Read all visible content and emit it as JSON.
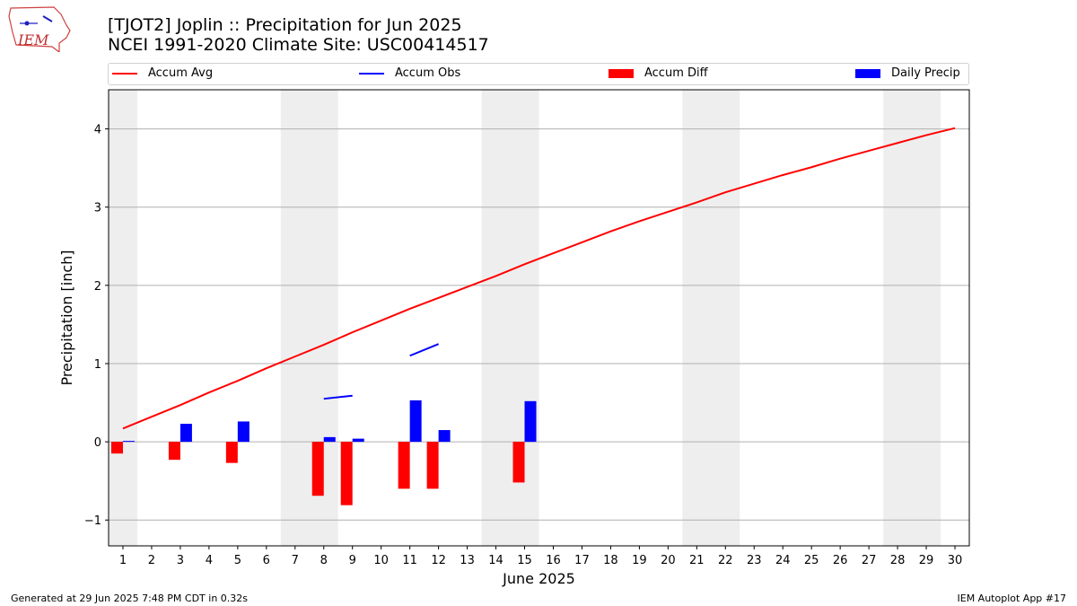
{
  "header": {
    "logo_text": "IEM",
    "title_line1": "[TJOT2] Joplin :: Precipitation for Jun 2025",
    "title_line2": "NCEI 1991-2020 Climate Site: USC00414517"
  },
  "footer": {
    "left": "Generated at 29 Jun 2025 7:48 PM CDT in 0.32s",
    "right": "IEM Autoplot App #17"
  },
  "colors": {
    "avg": "#ff0000",
    "obs": "#0000ff",
    "diff": "#ff0000",
    "daily": "#0000ff",
    "weekend": "#eeeeee",
    "grid": "#b0b0b0"
  },
  "chart_data": {
    "type": "bar",
    "xlabel": "June 2025",
    "ylabel": "Precipitation [inch]",
    "xlim": [
      0.5,
      30.5
    ],
    "ylim": [
      -1.33,
      4.5
    ],
    "days": [
      1,
      2,
      3,
      4,
      5,
      6,
      7,
      8,
      9,
      10,
      11,
      12,
      13,
      14,
      15,
      16,
      17,
      18,
      19,
      20,
      21,
      22,
      23,
      24,
      25,
      26,
      27,
      28,
      29,
      30
    ],
    "yticks": [
      -1,
      0,
      1,
      2,
      3,
      4
    ],
    "ytick_labels": [
      "−1",
      "0",
      "1",
      "2",
      "3",
      "4"
    ],
    "grid": "horizontal",
    "legend_position": "top",
    "weekend_ranges": [
      [
        0.5,
        1.5
      ],
      [
        6.5,
        8.5
      ],
      [
        13.5,
        15.5
      ],
      [
        20.5,
        22.5
      ],
      [
        27.5,
        29.5
      ]
    ],
    "legend": [
      {
        "name": "Accum Avg",
        "kind": "line",
        "color": "#ff0000"
      },
      {
        "name": "Accum Obs",
        "kind": "line",
        "color": "#0000ff"
      },
      {
        "name": "Accum Diff",
        "kind": "bar",
        "color": "#ff0000"
      },
      {
        "name": "Daily Precip",
        "kind": "bar",
        "color": "#0000ff"
      }
    ],
    "series": [
      {
        "name": "Accum Avg",
        "type": "line",
        "x": [
          1,
          2,
          3,
          4,
          5,
          6,
          7,
          8,
          9,
          10,
          11,
          12,
          13,
          14,
          15,
          16,
          17,
          18,
          19,
          20,
          21,
          22,
          23,
          24,
          25,
          26,
          27,
          28,
          29,
          30
        ],
        "values": [
          0.17,
          0.32,
          0.47,
          0.63,
          0.78,
          0.94,
          1.09,
          1.24,
          1.4,
          1.55,
          1.7,
          1.84,
          1.98,
          2.12,
          2.27,
          2.41,
          2.55,
          2.69,
          2.82,
          2.94,
          3.06,
          3.19,
          3.3,
          3.41,
          3.51,
          3.62,
          3.72,
          3.82,
          3.92,
          4.01
        ]
      },
      {
        "name": "Accum Obs",
        "type": "line",
        "segments": [
          {
            "x": [
              8,
              9
            ],
            "values": [
              0.55,
              0.59
            ]
          },
          {
            "x": [
              11,
              12
            ],
            "values": [
              1.1,
              1.25
            ]
          }
        ]
      },
      {
        "name": "Accum Diff",
        "type": "bar",
        "x": [
          1,
          3,
          5,
          8,
          9,
          11,
          12,
          15
        ],
        "values": [
          -0.15,
          -0.23,
          -0.27,
          -0.69,
          -0.81,
          -0.6,
          -0.6,
          -0.52
        ]
      },
      {
        "name": "Daily Precip",
        "type": "bar",
        "x": [
          1,
          3,
          5,
          8,
          9,
          11,
          12,
          15
        ],
        "values": [
          0.01,
          0.23,
          0.26,
          0.06,
          0.04,
          0.53,
          0.15,
          0.52
        ]
      }
    ]
  }
}
